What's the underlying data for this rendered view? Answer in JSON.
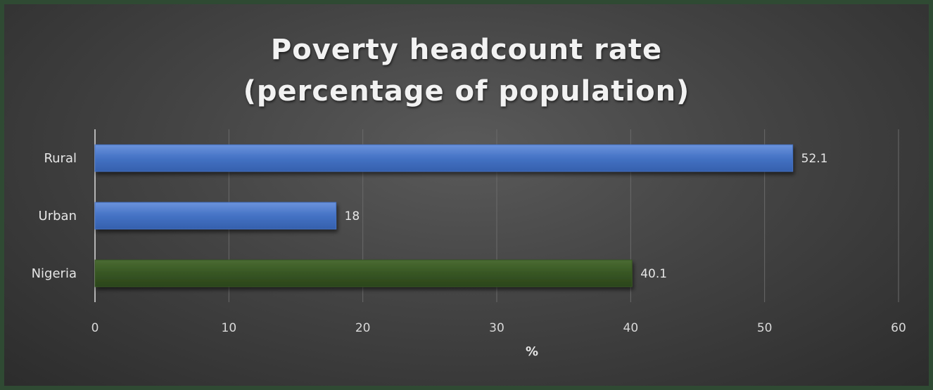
{
  "chart_data": {
    "type": "bar",
    "orientation": "horizontal",
    "title_lines": [
      "Poverty headcount rate",
      "(percentage of population)"
    ],
    "categories": [
      "Rural",
      "Urban",
      "Nigeria"
    ],
    "values": [
      52.1,
      18,
      40.1
    ],
    "value_labels": [
      "52.1",
      "18",
      "40.1"
    ],
    "bar_colors": [
      "#4472c4",
      "#4472c4",
      "#375623"
    ],
    "xlabel": "%",
    "ylabel": "",
    "xlim": [
      0,
      60
    ],
    "xticks": [
      0,
      10,
      20,
      30,
      40,
      50,
      60
    ],
    "grid": "vertical",
    "legend": "none"
  }
}
